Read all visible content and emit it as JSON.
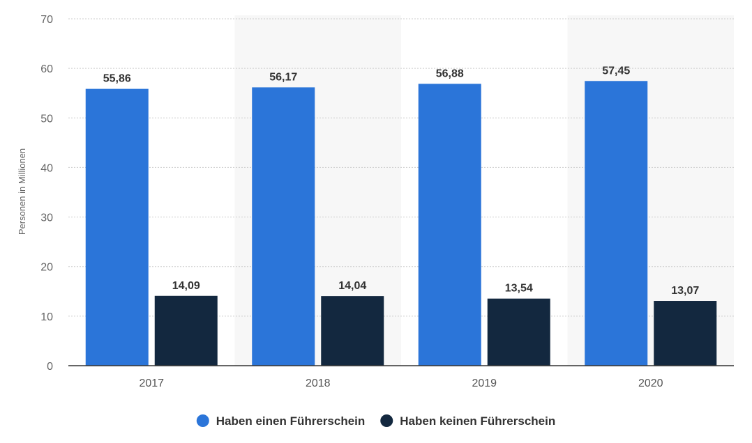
{
  "chart_data": {
    "type": "bar",
    "title": "",
    "xlabel": "",
    "ylabel": "Personen in Millionen",
    "ylim": [
      0,
      70
    ],
    "yticks": [
      0,
      10,
      20,
      30,
      40,
      50,
      60,
      70
    ],
    "grid": true,
    "categories": [
      "2017",
      "2018",
      "2019",
      "2020"
    ],
    "series": [
      {
        "name": "Haben einen Führerschein",
        "color": "#2b75d9",
        "values": [
          55.86,
          56.17,
          56.88,
          57.45
        ],
        "labels": [
          "55,86",
          "56,17",
          "56,88",
          "57,45"
        ]
      },
      {
        "name": "Haben keinen Führerschein",
        "color": "#13283f",
        "values": [
          14.09,
          14.04,
          13.54,
          13.07
        ],
        "labels": [
          "14,09",
          "14,04",
          "13,54",
          "13,07"
        ]
      }
    ],
    "legend_position": "bottom"
  }
}
